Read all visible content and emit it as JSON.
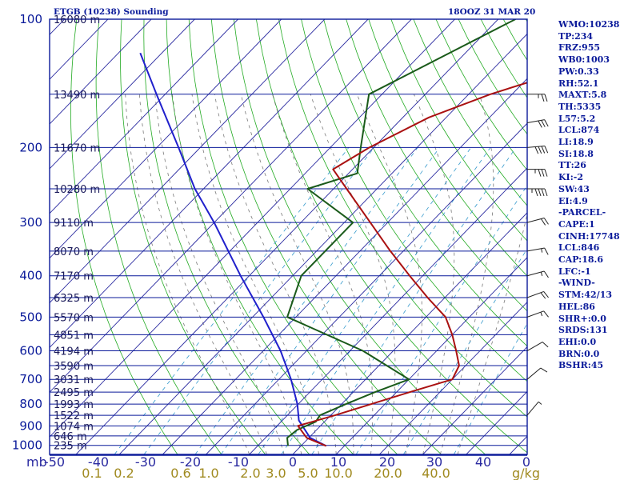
{
  "header": {
    "title": "ETGB (10238) Sounding",
    "time": "18OOZ 31 MAR 20"
  },
  "indices": [
    "WMO:10238",
    "TP:234",
    "FRZ:955",
    "WB0:1003",
    "PW:0.33",
    "RH:52.1",
    "MAXT:5.8",
    "TH:5335",
    "L57:5.2",
    "LCL:874",
    "LI:18.9",
    "SI:18.8",
    "TT:26",
    "KI:-2",
    "SW:43",
    "EI:4.9",
    "-PARCEL-",
    "CAPE:1",
    "CINH:17748",
    "LCL:846",
    "CAP:18.6",
    "LFC:-1",
    "-WIND-",
    "STM:42/13",
    "HEL:86",
    "SHR+:0.0",
    "SRDS:131",
    "EHI:0.0",
    "BRN:0.0",
    "BSHR:45"
  ],
  "colors": {
    "background": "#ffffff",
    "isobar": "#0a1a9a",
    "isotherm": "#2a2aa0",
    "dry_adiabat": "#22aa22",
    "moist_adiabat": "#7a7a7a",
    "mixing_ratio": "#3399cc",
    "temperature": "#aa1111",
    "dewpoint": "#1a5a1a",
    "parcel": "#2020cc",
    "text": "#0a1a9a",
    "axis_bottom": "#2a2aa0",
    "mixing_label": "#a08a20"
  },
  "chart_data": {
    "type": "line",
    "title": "ETGB (10238) Sounding",
    "xlabel": "",
    "ylabel": "",
    "pressure_unit_label": "mb",
    "mixing_ratio_unit_label": "g/kg",
    "y_axis_pressure_ticks": [
      "100",
      "200",
      "300",
      "400",
      "500",
      "600",
      "700",
      "800",
      "900",
      "1000"
    ],
    "x_axis_temperature_ticks": [
      "-50",
      "-40",
      "-30",
      "-20",
      "-10",
      "0",
      "10",
      "20",
      "30",
      "40",
      "0"
    ],
    "mixing_ratio_ticks": [
      "0.1",
      "0.2",
      "0.6",
      "1.0",
      "2.0",
      "3.0",
      "5.0",
      "10.0",
      "20.0",
      "40.0"
    ],
    "height_labels": [
      {
        "p": 100,
        "text": "16080 m"
      },
      {
        "p": 150,
        "text": "13490 m"
      },
      {
        "p": 200,
        "text": "11670 m"
      },
      {
        "p": 250,
        "text": "10280 m"
      },
      {
        "p": 300,
        "text": "9110 m"
      },
      {
        "p": 350,
        "text": "8070 m"
      },
      {
        "p": 400,
        "text": "7170 m"
      },
      {
        "p": 450,
        "text": "6325 m"
      },
      {
        "p": 500,
        "text": "5570 m"
      },
      {
        "p": 550,
        "text": "4851 m"
      },
      {
        "p": 600,
        "text": "4194 m"
      },
      {
        "p": 650,
        "text": "3590 m"
      },
      {
        "p": 700,
        "text": "3031 m"
      },
      {
        "p": 750,
        "text": "2495 m"
      },
      {
        "p": 800,
        "text": "1993 m"
      },
      {
        "p": 850,
        "text": "1522 m"
      },
      {
        "p": 900,
        "text": "1074 m"
      },
      {
        "p": 950,
        "text": "646 m"
      },
      {
        "p": 1000,
        "text": "235 m"
      }
    ],
    "series": [
      {
        "key": "temperature",
        "points": [
          [
            1003,
            5.8
          ],
          [
            960,
            -0.5
          ],
          [
            900,
            -5.2
          ],
          [
            850,
            1
          ],
          [
            750,
            13
          ],
          [
            700,
            20
          ],
          [
            650,
            18.5
          ],
          [
            600,
            14.5
          ],
          [
            550,
            10
          ],
          [
            500,
            4.5
          ],
          [
            450,
            -4
          ],
          [
            400,
            -13
          ],
          [
            350,
            -23
          ],
          [
            300,
            -34
          ],
          [
            250,
            -47
          ],
          [
            225,
            -54.5
          ],
          [
            200,
            -51
          ],
          [
            170,
            -44
          ],
          [
            150,
            -35
          ],
          [
            100,
            3
          ]
        ]
      },
      {
        "key": "dewpoint",
        "points": [
          [
            1003,
            -3
          ],
          [
            960,
            -5
          ],
          [
            920,
            -4.5
          ],
          [
            880,
            -2
          ],
          [
            850,
            -2.5
          ],
          [
            800,
            1
          ],
          [
            750,
            5
          ],
          [
            700,
            10
          ],
          [
            600,
            -7
          ],
          [
            500,
            -32
          ],
          [
            400,
            -38
          ],
          [
            300,
            -38
          ],
          [
            250,
            -56
          ],
          [
            230,
            -48
          ],
          [
            200,
            -53
          ],
          [
            150,
            -63
          ],
          [
            100,
            -46
          ]
        ]
      },
      {
        "key": "parcel",
        "points": [
          [
            1003,
            5.8
          ],
          [
            960,
            0.3
          ],
          [
            874,
            -6.2
          ],
          [
            800,
            -10.2
          ],
          [
            700,
            -17.2
          ],
          [
            600,
            -26
          ],
          [
            500,
            -37.5
          ],
          [
            400,
            -52
          ],
          [
            300,
            -70
          ],
          [
            250,
            -82
          ],
          [
            200,
            -95
          ],
          [
            150,
            -112
          ],
          [
            120,
            -125
          ]
        ]
      }
    ],
    "wind_barbs": [
      {
        "p": 150,
        "dir": 270,
        "speed": 25
      },
      {
        "p": 175,
        "dir": 280,
        "speed": 30
      },
      {
        "p": 200,
        "dir": 275,
        "speed": 40
      },
      {
        "p": 225,
        "dir": 270,
        "speed": 35
      },
      {
        "p": 250,
        "dir": 270,
        "speed": 45
      },
      {
        "p": 300,
        "dir": 285,
        "speed": 20
      },
      {
        "p": 350,
        "dir": 280,
        "speed": 15
      },
      {
        "p": 400,
        "dir": 285,
        "speed": 15
      },
      {
        "p": 450,
        "dir": 290,
        "speed": 20
      },
      {
        "p": 500,
        "dir": 290,
        "speed": 15
      },
      {
        "p": 600,
        "dir": 300,
        "speed": 10
      },
      {
        "p": 700,
        "dir": 310,
        "speed": 10
      },
      {
        "p": 850,
        "dir": 320,
        "speed": 5
      }
    ]
  }
}
